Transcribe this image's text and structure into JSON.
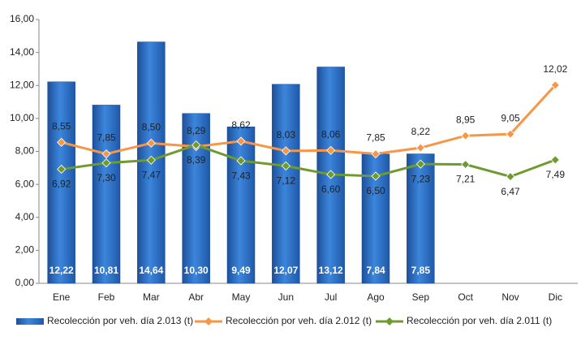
{
  "chart_data": {
    "type": "combo",
    "categories": [
      "Ene",
      "Feb",
      "Mar",
      "Abr",
      "May",
      "Jun",
      "Jul",
      "Ago",
      "Sep",
      "Oct",
      "Nov",
      "Dic"
    ],
    "ylim": [
      0,
      16
    ],
    "yticks": [
      {
        "value": 0,
        "label": "0,00"
      },
      {
        "value": 2,
        "label": "2,00"
      },
      {
        "value": 4,
        "label": "4,00"
      },
      {
        "value": 6,
        "label": "6,00"
      },
      {
        "value": 8,
        "label": "8,00"
      },
      {
        "value": 10,
        "label": "10,00"
      },
      {
        "value": 12,
        "label": "12,00"
      },
      {
        "value": 14,
        "label": "14,00"
      },
      {
        "value": 16,
        "label": "16,00"
      }
    ],
    "series": [
      {
        "name": "Recolección por veh. día 2.013 (t)",
        "type": "bar",
        "color": "#2f6fc4",
        "values": [
          12.22,
          10.81,
          14.64,
          10.3,
          9.49,
          12.07,
          13.12,
          7.84,
          7.85,
          null,
          null,
          null
        ],
        "value_labels": [
          "12,22",
          "10,81",
          "14,64",
          "10,30",
          "9,49",
          "12,07",
          "13,12",
          "7,84",
          "7,85",
          null,
          null,
          null
        ]
      },
      {
        "name": "Recolección por veh. día 2.012 (t)",
        "type": "line",
        "color": "#f79646",
        "values": [
          8.55,
          7.85,
          8.5,
          8.29,
          8.62,
          8.03,
          8.06,
          7.85,
          8.22,
          8.95,
          9.05,
          12.02
        ],
        "value_labels": [
          "8,55",
          "7,85",
          "8,50",
          "8,29",
          "8,62",
          "8,03",
          "8,06",
          "7,85",
          "8,22",
          "8,95",
          "9,05",
          "12,02"
        ]
      },
      {
        "name": "Recolección por veh. día 2.011 (t)",
        "type": "line",
        "color": "#6f9a2e",
        "values": [
          6.92,
          7.3,
          7.47,
          8.39,
          7.43,
          7.12,
          6.6,
          6.5,
          7.23,
          7.21,
          6.47,
          7.49
        ],
        "value_labels": [
          "6,92",
          "7,30",
          "7,47",
          "8,39",
          "7,43",
          "7,12",
          "6,60",
          "6,50",
          "7,23",
          "7,21",
          "6,47",
          "7,49"
        ]
      }
    ]
  }
}
